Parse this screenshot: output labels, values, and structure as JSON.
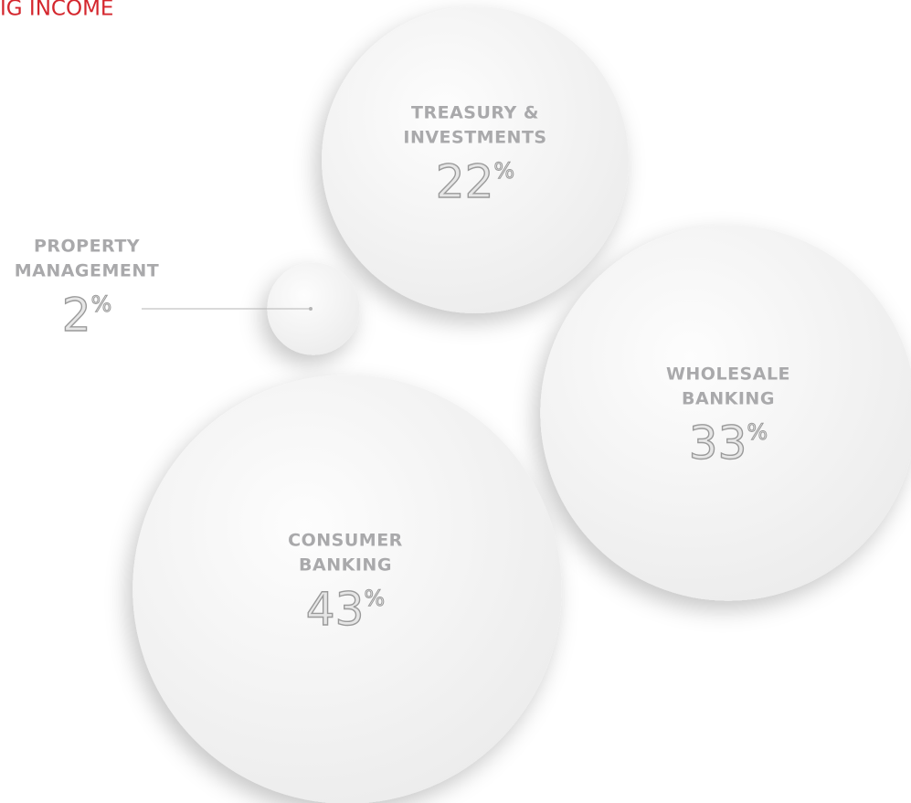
{
  "chart_data": {
    "type": "bubble",
    "title": "IG INCOME",
    "categories": [
      [
        "TREASURY &",
        "INVESTMENTS"
      ],
      [
        "PROPERTY",
        "MANAGEMENT"
      ],
      [
        "WHOLESALE",
        "BANKING"
      ],
      [
        "CONSUMER",
        "BANKING"
      ]
    ],
    "values": [
      22,
      2,
      33,
      43
    ],
    "unit": "%",
    "color": "#f6f6f6",
    "title_color": "#d4262d"
  }
}
